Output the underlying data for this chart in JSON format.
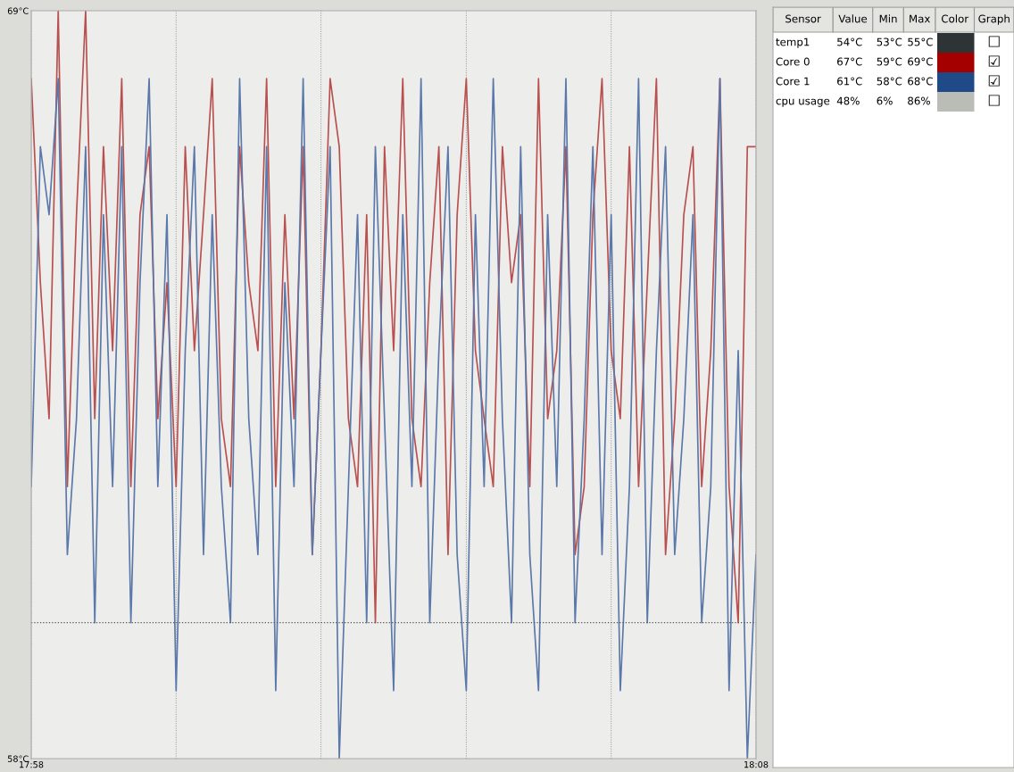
{
  "chart_data": [
    {
      "type": "line",
      "xlim": [
        17.9667,
        18.1333
      ],
      "ylim": [
        58,
        69
      ],
      "xticks": [
        {
          "value": 17.9667,
          "label": "17:58"
        },
        {
          "value": 18.0,
          "label": null
        },
        {
          "value": 18.0333,
          "label": null
        },
        {
          "value": 18.0667,
          "label": null
        },
        {
          "value": 18.1,
          "label": null
        },
        {
          "value": 18.1333,
          "label": "18:08"
        }
      ],
      "yticks": [
        {
          "value": 58,
          "label": "58°C"
        },
        {
          "value": 69,
          "label": "69°C"
        }
      ],
      "grid": "x",
      "line_style": "solid",
      "ref_lines": [
        {
          "axis": "y",
          "value": 60,
          "label": null,
          "color": "#555555",
          "line_style": "dotted"
        }
      ],
      "x": [
        17.9667,
        17.9688,
        17.9708,
        17.9729,
        17.975,
        17.9771,
        17.9792,
        17.9813,
        17.9833,
        17.9854,
        17.9875,
        17.9896,
        17.9917,
        17.9938,
        17.9958,
        17.9979,
        18.0,
        18.0021,
        18.0042,
        18.0063,
        18.0083,
        18.0104,
        18.0125,
        18.0146,
        18.0167,
        18.0188,
        18.0208,
        18.0229,
        18.025,
        18.0271,
        18.0292,
        18.0313,
        18.0333,
        18.0354,
        18.0375,
        18.0396,
        18.0417,
        18.0438,
        18.0458,
        18.0479,
        18.05,
        18.0521,
        18.0542,
        18.0563,
        18.0583,
        18.0604,
        18.0625,
        18.0646,
        18.0667,
        18.0688,
        18.0708,
        18.0729,
        18.075,
        18.0771,
        18.0792,
        18.0813,
        18.0833,
        18.0854,
        18.0875,
        18.0896,
        18.0917,
        18.0938,
        18.0958,
        18.0979,
        18.1,
        18.1021,
        18.1042,
        18.1063,
        18.1083,
        18.1104,
        18.1125,
        18.1146,
        18.1167,
        18.1188,
        18.1208,
        18.1229,
        18.125,
        18.1271,
        18.1292,
        18.1313,
        18.1333
      ],
      "series": [
        {
          "color": "#b85050",
          "values": [
            68,
            65,
            63,
            69,
            62,
            66,
            69,
            63,
            67,
            64,
            68,
            62,
            66,
            67,
            63,
            65,
            62,
            67,
            64,
            66,
            68,
            63,
            62,
            67,
            65,
            64,
            68,
            62,
            66,
            63,
            67,
            61,
            64,
            68,
            67,
            63,
            62,
            66,
            60,
            67,
            64,
            68,
            63,
            62,
            65,
            67,
            61,
            66,
            68,
            64,
            63,
            62,
            67,
            65,
            66,
            62,
            68,
            63,
            64,
            67,
            61,
            62,
            66,
            68,
            64,
            63,
            67,
            62,
            65,
            68,
            61,
            63,
            66,
            67,
            62,
            64,
            68,
            62,
            60,
            67,
            67
          ]
        },
        {
          "color": "#5a78aa",
          "values": [
            62,
            67,
            66,
            68,
            61,
            63,
            67,
            60,
            66,
            62,
            67,
            60,
            65,
            68,
            62,
            66,
            59,
            64,
            67,
            61,
            66,
            62,
            60,
            68,
            63,
            61,
            67,
            59,
            65,
            62,
            68,
            61,
            64,
            67,
            58,
            62,
            66,
            60,
            67,
            63,
            59,
            66,
            62,
            68,
            60,
            64,
            67,
            61,
            59,
            66,
            62,
            68,
            63,
            60,
            67,
            61,
            59,
            66,
            62,
            68,
            60,
            63,
            67,
            61,
            66,
            59,
            62,
            68,
            60,
            64,
            67,
            61,
            63,
            66,
            60,
            62,
            68,
            59,
            64,
            58,
            61
          ]
        }
      ]
    },
    {
      "type": "other",
      "categories": [
        "Sensor",
        "Value",
        "Min",
        "Max",
        "Color",
        "Graph"
      ],
      "y_categories": [
        "temp1",
        "Core 0",
        "Core 1",
        "cpu usage"
      ],
      "cell_labels": [
        [
          "54°C",
          "53°C",
          "55°C",
          "☐"
        ],
        [
          "67°C",
          "59°C",
          "69°C",
          "☑"
        ],
        [
          "61°C",
          "58°C",
          "68°C",
          "☑"
        ],
        [
          "48%",
          "6%",
          "86%",
          "☐"
        ]
      ]
    }
  ]
}
